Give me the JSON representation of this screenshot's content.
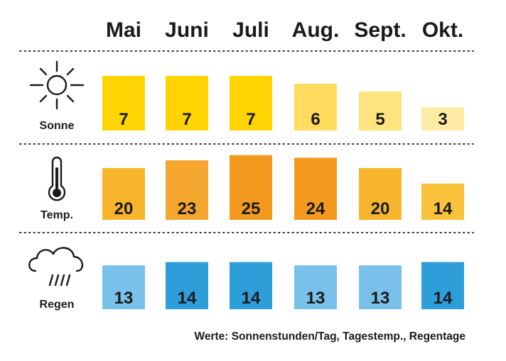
{
  "chart_data": {
    "type": "table",
    "categories": [
      "Mai",
      "Juni",
      "Juli",
      "Aug.",
      "Sept.",
      "Okt."
    ],
    "series": [
      {
        "name": "Sonne",
        "icon": "sun-icon",
        "values": [
          7,
          7,
          7,
          6,
          5,
          3
        ],
        "colors": [
          "#FFD400",
          "#FFD400",
          "#FFD400",
          "#FFDC5E",
          "#FFE37F",
          "#FFEBA3"
        ]
      },
      {
        "name": "Temp.",
        "icon": "thermometer-icon",
        "values": [
          20,
          23,
          25,
          24,
          20,
          14
        ],
        "colors": [
          "#F7B52C",
          "#F5A62E",
          "#F39A1E",
          "#F39A1E",
          "#F7B52C",
          "#F8C33A"
        ]
      },
      {
        "name": "Regen",
        "icon": "rain-cloud-icon",
        "values": [
          13,
          14,
          14,
          13,
          13,
          14
        ],
        "colors": [
          "#79C0EA",
          "#2E9EDB",
          "#2E9EDB",
          "#79C0EA",
          "#79C0EA",
          "#2E9EDB"
        ]
      }
    ],
    "caption": "Werte: Sonnenstunden/Tag, Tagestemp., Regentage",
    "grid": false,
    "dividers": "dotted"
  }
}
